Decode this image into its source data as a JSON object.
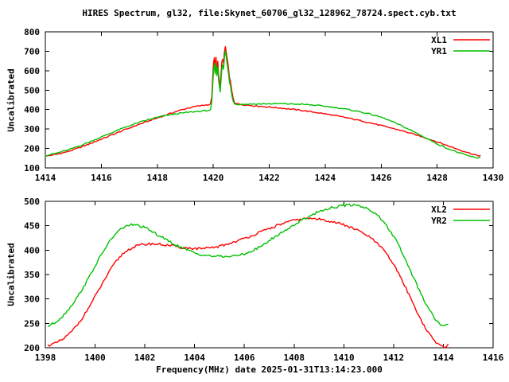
{
  "title": "HIRES Spectrum, gl32, file:Skynet_60706_gl32_128962_78724.spect.cyb.txt",
  "colors": {
    "series_red": "#ff0000",
    "series_green": "#00c000",
    "axis": "#000000",
    "background": "#ffffff"
  },
  "chart_data": [
    {
      "type": "line",
      "ylabel": "Uncalibrated",
      "xlabel": "",
      "xlim": [
        1414,
        1430
      ],
      "ylim": [
        100,
        800
      ],
      "xticks": [
        1414,
        1416,
        1418,
        1420,
        1422,
        1424,
        1426,
        1428,
        1430
      ],
      "yticks": [
        100,
        200,
        300,
        400,
        500,
        600,
        700,
        800
      ],
      "grid": false,
      "legend_position": "top-right",
      "noise_amplitude": 3,
      "series": [
        {
          "name": "XL1",
          "color": "#ff0000",
          "points": [
            [
              1414.0,
              160
            ],
            [
              1414.4,
              170
            ],
            [
              1414.8,
              184
            ],
            [
              1415.2,
              203
            ],
            [
              1415.6,
              225
            ],
            [
              1416.0,
              248
            ],
            [
              1416.4,
              271
            ],
            [
              1416.8,
              294
            ],
            [
              1417.2,
              316
            ],
            [
              1417.6,
              337
            ],
            [
              1418.0,
              357
            ],
            [
              1418.4,
              377
            ],
            [
              1418.8,
              396
            ],
            [
              1419.1,
              408
            ],
            [
              1419.4,
              417
            ],
            [
              1419.7,
              423
            ],
            [
              1419.9,
              427
            ],
            [
              1419.95,
              470
            ],
            [
              1419.98,
              560
            ],
            [
              1420.01,
              640
            ],
            [
              1420.04,
              665
            ],
            [
              1420.07,
              615
            ],
            [
              1420.1,
              668
            ],
            [
              1420.13,
              605
            ],
            [
              1420.16,
              648
            ],
            [
              1420.19,
              580
            ],
            [
              1420.22,
              545
            ],
            [
              1420.25,
              515
            ],
            [
              1420.28,
              585
            ],
            [
              1420.31,
              645
            ],
            [
              1420.34,
              662
            ],
            [
              1420.37,
              635
            ],
            [
              1420.4,
              695
            ],
            [
              1420.43,
              725
            ],
            [
              1420.46,
              702
            ],
            [
              1420.49,
              665
            ],
            [
              1420.52,
              642
            ],
            [
              1420.55,
              605
            ],
            [
              1420.58,
              565
            ],
            [
              1420.61,
              548
            ],
            [
              1420.64,
              522
            ],
            [
              1420.67,
              492
            ],
            [
              1420.71,
              462
            ],
            [
              1420.76,
              436
            ],
            [
              1420.9,
              428
            ],
            [
              1421.2,
              423
            ],
            [
              1421.6,
              418
            ],
            [
              1422.0,
              413
            ],
            [
              1422.4,
              408
            ],
            [
              1422.8,
              402
            ],
            [
              1423.2,
              395
            ],
            [
              1423.6,
              387
            ],
            [
              1424.0,
              378
            ],
            [
              1424.4,
              368
            ],
            [
              1424.8,
              357
            ],
            [
              1425.2,
              345
            ],
            [
              1425.6,
              332
            ],
            [
              1426.0,
              318
            ],
            [
              1426.4,
              304
            ],
            [
              1426.8,
              289
            ],
            [
              1427.2,
              272
            ],
            [
              1427.6,
              254
            ],
            [
              1428.0,
              234
            ],
            [
              1428.4,
              213
            ],
            [
              1428.8,
              193
            ],
            [
              1429.1,
              179
            ],
            [
              1429.3,
              169
            ],
            [
              1429.45,
              163
            ],
            [
              1429.55,
              165
            ]
          ]
        },
        {
          "name": "YR1",
          "color": "#00c000",
          "points": [
            [
              1414.0,
              163
            ],
            [
              1414.4,
              176
            ],
            [
              1414.8,
              192
            ],
            [
              1415.2,
              212
            ],
            [
              1415.6,
              235
            ],
            [
              1416.0,
              259
            ],
            [
              1416.4,
              283
            ],
            [
              1416.8,
              306
            ],
            [
              1417.2,
              327
            ],
            [
              1417.6,
              345
            ],
            [
              1418.0,
              360
            ],
            [
              1418.4,
              372
            ],
            [
              1418.8,
              381
            ],
            [
              1419.1,
              386
            ],
            [
              1419.4,
              390
            ],
            [
              1419.7,
              394
            ],
            [
              1419.9,
              397
            ],
            [
              1419.95,
              440
            ],
            [
              1419.98,
              520
            ],
            [
              1420.01,
              600
            ],
            [
              1420.04,
              630
            ],
            [
              1420.07,
              585
            ],
            [
              1420.1,
              638
            ],
            [
              1420.13,
              578
            ],
            [
              1420.16,
              618
            ],
            [
              1420.19,
              552
            ],
            [
              1420.22,
              520
            ],
            [
              1420.25,
              492
            ],
            [
              1420.28,
              558
            ],
            [
              1420.31,
              615
            ],
            [
              1420.34,
              632
            ],
            [
              1420.37,
              608
            ],
            [
              1420.4,
              668
            ],
            [
              1420.43,
              700
            ],
            [
              1420.46,
              676
            ],
            [
              1420.49,
              638
            ],
            [
              1420.52,
              615
            ],
            [
              1420.55,
              580
            ],
            [
              1420.58,
              542
            ],
            [
              1420.61,
              525
            ],
            [
              1420.64,
              500
            ],
            [
              1420.67,
              472
            ],
            [
              1420.71,
              445
            ],
            [
              1420.76,
              430
            ],
            [
              1420.9,
              427
            ],
            [
              1421.2,
              428
            ],
            [
              1421.6,
              429
            ],
            [
              1422.0,
              430
            ],
            [
              1422.4,
              430
            ],
            [
              1422.8,
              429
            ],
            [
              1423.2,
              427
            ],
            [
              1423.6,
              423
            ],
            [
              1424.0,
              417
            ],
            [
              1424.4,
              410
            ],
            [
              1424.8,
              401
            ],
            [
              1425.2,
              390
            ],
            [
              1425.6,
              377
            ],
            [
              1426.0,
              361
            ],
            [
              1426.4,
              338
            ],
            [
              1426.8,
              312
            ],
            [
              1427.2,
              284
            ],
            [
              1427.6,
              254
            ],
            [
              1428.0,
              224
            ],
            [
              1428.4,
              198
            ],
            [
              1428.8,
              177
            ],
            [
              1429.1,
              163
            ],
            [
              1429.3,
              155
            ],
            [
              1429.45,
              152
            ],
            [
              1429.55,
              156
            ]
          ]
        }
      ]
    },
    {
      "type": "line",
      "ylabel": "Uncalibrated",
      "xlabel": "Frequency(MHz) date 2025-01-31T13:14:23.000",
      "xlim": [
        1398,
        1416
      ],
      "ylim": [
        200,
        500
      ],
      "xticks": [
        1398,
        1400,
        1402,
        1404,
        1406,
        1408,
        1410,
        1412,
        1414,
        1416
      ],
      "yticks": [
        200,
        250,
        300,
        350,
        400,
        450,
        500
      ],
      "grid": false,
      "legend_position": "top-right",
      "noise_amplitude": 2.5,
      "series": [
        {
          "name": "XL2",
          "color": "#ff0000",
          "points": [
            [
              1398.1,
              205
            ],
            [
              1398.4,
              209
            ],
            [
              1398.7,
              217
            ],
            [
              1399.0,
              230
            ],
            [
              1399.3,
              248
            ],
            [
              1399.6,
              270
            ],
            [
              1399.9,
              296
            ],
            [
              1400.2,
              323
            ],
            [
              1400.5,
              350
            ],
            [
              1400.8,
              374
            ],
            [
              1401.1,
              392
            ],
            [
              1401.4,
              403
            ],
            [
              1401.7,
              409
            ],
            [
              1402.0,
              412
            ],
            [
              1402.3,
              413
            ],
            [
              1402.6,
              412
            ],
            [
              1402.9,
              410
            ],
            [
              1403.2,
              408
            ],
            [
              1403.5,
              405
            ],
            [
              1403.8,
              404
            ],
            [
              1404.1,
              403
            ],
            [
              1404.4,
              403
            ],
            [
              1404.7,
              405
            ],
            [
              1405.0,
              408
            ],
            [
              1405.3,
              412
            ],
            [
              1405.6,
              417
            ],
            [
              1405.9,
              422
            ],
            [
              1406.2,
              428
            ],
            [
              1406.5,
              434
            ],
            [
              1406.8,
              440
            ],
            [
              1407.1,
              446
            ],
            [
              1407.4,
              452
            ],
            [
              1407.7,
              457
            ],
            [
              1408.0,
              461
            ],
            [
              1408.3,
              464
            ],
            [
              1408.6,
              465
            ],
            [
              1408.9,
              464
            ],
            [
              1409.2,
              462
            ],
            [
              1409.5,
              459
            ],
            [
              1409.8,
              455
            ],
            [
              1410.1,
              450
            ],
            [
              1410.4,
              444
            ],
            [
              1410.7,
              437
            ],
            [
              1411.0,
              428
            ],
            [
              1411.3,
              416
            ],
            [
              1411.6,
              400
            ],
            [
              1411.9,
              379
            ],
            [
              1412.2,
              353
            ],
            [
              1412.5,
              322
            ],
            [
              1412.8,
              289
            ],
            [
              1413.1,
              257
            ],
            [
              1413.4,
              230
            ],
            [
              1413.7,
              211
            ],
            [
              1413.9,
              204
            ],
            [
              1414.05,
              202
            ],
            [
              1414.2,
              208
            ]
          ]
        },
        {
          "name": "YR2",
          "color": "#00c000",
          "points": [
            [
              1398.1,
              244
            ],
            [
              1398.4,
              252
            ],
            [
              1398.7,
              265
            ],
            [
              1399.0,
              283
            ],
            [
              1399.3,
              305
            ],
            [
              1399.6,
              330
            ],
            [
              1399.9,
              358
            ],
            [
              1400.2,
              386
            ],
            [
              1400.5,
              412
            ],
            [
              1400.8,
              432
            ],
            [
              1401.1,
              446
            ],
            [
              1401.4,
              452
            ],
            [
              1401.7,
              451
            ],
            [
              1402.0,
              446
            ],
            [
              1402.3,
              438
            ],
            [
              1402.6,
              429
            ],
            [
              1402.9,
              420
            ],
            [
              1403.2,
              412
            ],
            [
              1403.5,
              404
            ],
            [
              1403.8,
              398
            ],
            [
              1404.1,
              393
            ],
            [
              1404.4,
              390
            ],
            [
              1404.7,
              388
            ],
            [
              1405.0,
              387
            ],
            [
              1405.3,
              387
            ],
            [
              1405.6,
              388
            ],
            [
              1405.9,
              391
            ],
            [
              1406.2,
              396
            ],
            [
              1406.5,
              403
            ],
            [
              1406.8,
              412
            ],
            [
              1407.1,
              423
            ],
            [
              1407.4,
              433
            ],
            [
              1407.7,
              442
            ],
            [
              1408.0,
              452
            ],
            [
              1408.3,
              461
            ],
            [
              1408.6,
              469
            ],
            [
              1408.9,
              477
            ],
            [
              1409.2,
              483
            ],
            [
              1409.5,
              487
            ],
            [
              1409.8,
              490
            ],
            [
              1410.1,
              492
            ],
            [
              1410.4,
              493
            ],
            [
              1410.7,
              490
            ],
            [
              1411.0,
              484
            ],
            [
              1411.3,
              474
            ],
            [
              1411.6,
              458
            ],
            [
              1411.9,
              437
            ],
            [
              1412.2,
              410
            ],
            [
              1412.5,
              378
            ],
            [
              1412.8,
              344
            ],
            [
              1413.1,
              310
            ],
            [
              1413.4,
              280
            ],
            [
              1413.7,
              257
            ],
            [
              1413.9,
              247
            ],
            [
              1414.05,
              244
            ],
            [
              1414.2,
              248
            ]
          ]
        }
      ]
    }
  ]
}
